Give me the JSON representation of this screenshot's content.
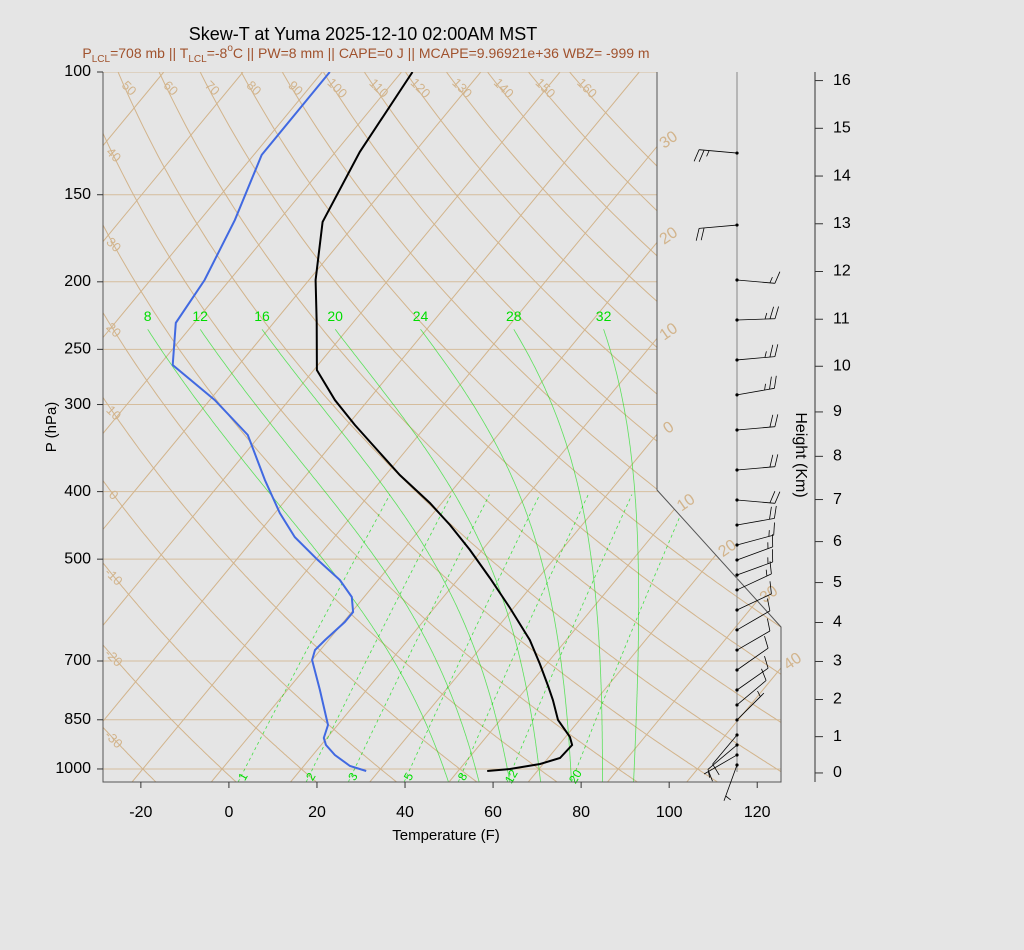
{
  "chart_data": {
    "type": "skewt",
    "title": "Skew-T at Yuma 2025-12-10 02:00AM MST",
    "subtitle": [
      {
        "text": "P"
      },
      {
        "text": "LCL",
        "shift": "sub"
      },
      {
        "text": "=708 mb || T"
      },
      {
        "text": "LCL",
        "shift": "sub"
      },
      {
        "text": "=-8"
      },
      {
        "text": "o",
        "shift": "super"
      },
      {
        "text": "C || PW=8 mm || CAPE=0 J || MCAPE=9.96921e+36 WBZ= -999 m"
      }
    ],
    "x_label": "Temperature (F)",
    "y_label": "P (hPa)",
    "height_label": "Height (Km)",
    "xlim": [
      -28.6,
      125.4
    ],
    "xticks": [
      -20,
      0,
      20,
      40,
      60,
      80,
      100,
      120
    ],
    "ylim": [
      1044,
      100
    ],
    "yticks": [
      100,
      150,
      200,
      250,
      300,
      400,
      500,
      700,
      850,
      1000
    ],
    "y_scale": "log",
    "height_ticks": [
      0,
      1,
      2,
      3,
      4,
      5,
      6,
      7,
      8,
      9,
      10,
      11,
      12,
      13,
      14,
      15,
      16
    ],
    "temperature": {
      "color": "#000000",
      "pressure": [
        1006.6,
        1000,
        983.6,
        964.3,
        923.8,
        899.6,
        850.5,
        796.2,
        760.3,
        707.0,
        653.0,
        587.5,
        532.1,
        485.0,
        446.7,
        415.3,
        378.6,
        352.1,
        320.9,
        295.5,
        267.7,
        229.1,
        198.8,
        164.1,
        130.2,
        100
      ],
      "values": [
        56.6,
        61.4,
        67.3,
        70.7,
        71.0,
        69.0,
        63.1,
        58.2,
        54.5,
        48.5,
        41.7,
        31.2,
        21.0,
        11.2,
        2.0,
        -6.7,
        -18.8,
        -27.4,
        -38.4,
        -47.6,
        -57.3,
        -66.2,
        -74.5,
        -83.8,
        -88.5,
        -91.5
      ]
    },
    "dewpoint": {
      "color": "#4169e1",
      "pressure": [
        1006.6,
        990.1,
        954.8,
        923.8,
        902.7,
        864.7,
        770.4,
        697.7,
        675.1,
        653.0,
        615.3,
        595.3,
        566.5,
        535.6,
        501.3,
        464.8,
        429.3,
        384.9,
        331.8,
        295.5,
        263.3,
        229.1,
        198.8,
        163.0,
        131.5,
        100
      ],
      "values": [
        29.1,
        24.5,
        19.0,
        15.1,
        13.3,
        11.8,
        3.4,
        -4.0,
        -5.2,
        -4.8,
        -3.7,
        -3.7,
        -6.8,
        -12.7,
        -21.5,
        -31.0,
        -38.9,
        -48.5,
        -60.8,
        -74.9,
        -91.0,
        -98.2,
        -99.7,
        -104.1,
        -110.2,
        -110.3
      ]
    },
    "wind": {
      "color": "#000000",
      "pressure": [
        130.7,
        165.8,
        198.8,
        226.9,
        258.9,
        290.6,
        326.3,
        372.4,
        411.2,
        446.7,
        477.1,
        501.3,
        526.8,
        553.5,
        591.4,
        631.7,
        675.1,
        721.1,
        770.4,
        809.4,
        850.5,
        893.8,
        923.8,
        954.8,
        986.9
      ],
      "direction": [
        275,
        265,
        95,
        88,
        85,
        80,
        85,
        85,
        95,
        80,
        75,
        70,
        70,
        65,
        65,
        60,
        60,
        55,
        55,
        50,
        45,
        220,
        230,
        240,
        200
      ],
      "speed": [
        25,
        20,
        15,
        25,
        25,
        25,
        20,
        20,
        20,
        20,
        15,
        15,
        15,
        15,
        10,
        10,
        10,
        10,
        10,
        10,
        5,
        10,
        10,
        5,
        5
      ]
    },
    "isotherms": [
      {
        "value": -100,
        "label": null
      },
      {
        "value": -90,
        "label": null
      },
      {
        "value": -80,
        "label": null
      },
      {
        "value": -70,
        "label": null
      },
      {
        "value": -60,
        "label": null
      },
      {
        "value": -50,
        "label": null
      },
      {
        "value": -40,
        "label": null
      },
      {
        "value": -30,
        "label": "30"
      },
      {
        "value": -20,
        "label": "20"
      },
      {
        "value": -10,
        "label": "10"
      },
      {
        "value": 0,
        "label": "0"
      },
      {
        "value": 10,
        "label": "10"
      },
      {
        "value": 20,
        "label": "20"
      },
      {
        "value": 30,
        "label": "30"
      },
      {
        "value": 40,
        "label": "40"
      }
    ],
    "dry_adiabats": [
      -30,
      -20,
      -10,
      0,
      10,
      20,
      30,
      40,
      50,
      60,
      70,
      80,
      90,
      100,
      110,
      120,
      130,
      140,
      150,
      160
    ],
    "moist_adiabats": [
      8,
      12,
      16,
      20,
      24,
      28,
      32
    ],
    "mixing_ratios": [
      1,
      2,
      3,
      5,
      8,
      12,
      20
    ],
    "grid_color": "#d2b48c",
    "moist_color": "#00dd00"
  }
}
